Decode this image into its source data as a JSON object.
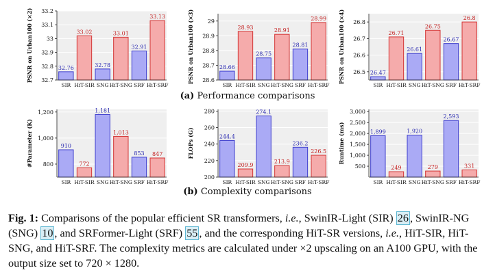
{
  "chart_data": [
    {
      "type": "bar",
      "ylabel": "PSNR on Urban100 (×2)",
      "categories": [
        "SIR",
        "HiT-SIR",
        "SNG",
        "HiT-SNG",
        "SRF",
        "HiT-SRF"
      ],
      "values": [
        32.76,
        33.02,
        32.78,
        33.01,
        32.91,
        33.13
      ],
      "labels": [
        "32.76",
        "33.02",
        "32.78",
        "33.01",
        "32.91",
        "33.13"
      ],
      "ylim": [
        32.7,
        33.2
      ],
      "yticks": [
        32.7,
        32.8,
        32.9,
        33.0,
        33.1,
        33.2
      ],
      "yticklabels": [
        "32.7",
        "32.8",
        "32.9",
        "33",
        "33.1",
        "33.2"
      ],
      "grid": true
    },
    {
      "type": "bar",
      "ylabel": "PSNR on Urban100 (×3)",
      "categories": [
        "SIR",
        "HiT-SIR",
        "SNG",
        "HiT-SNG",
        "SRF",
        "HiT-SRF"
      ],
      "values": [
        28.66,
        28.93,
        28.75,
        28.91,
        28.81,
        28.99
      ],
      "labels": [
        "28.66",
        "28.93",
        "28.75",
        "28.91",
        "28.81",
        "28.99"
      ],
      "ylim": [
        28.6,
        29.05
      ],
      "yticks": [
        28.6,
        28.7,
        28.8,
        28.9,
        29.0
      ],
      "yticklabels": [
        "28.6",
        "28.7",
        "28.8",
        "28.9",
        "29"
      ],
      "grid": true
    },
    {
      "type": "bar",
      "ylabel": "PSNR on Urban100 (×4)",
      "categories": [
        "SIR",
        "HiT-SIR",
        "SNG",
        "HiT-SNG",
        "SRF",
        "HiT-SRF"
      ],
      "values": [
        26.47,
        26.71,
        26.61,
        26.75,
        26.67,
        26.8
      ],
      "labels": [
        "26.47",
        "26.71",
        "26.61",
        "26.75",
        "26.67",
        "26.8"
      ],
      "ylim": [
        26.45,
        26.85
      ],
      "yticks": [
        26.5,
        26.6,
        26.7,
        26.8
      ],
      "yticklabels": [
        "26.5",
        "26.6",
        "26.7",
        "26.8"
      ],
      "grid": true
    },
    {
      "type": "bar",
      "ylabel": "#Parameter (K)",
      "categories": [
        "SIR",
        "HiT-SIR",
        "SNG",
        "HiT-SNG",
        "SRF",
        "HiT-SRF"
      ],
      "values": [
        910,
        772,
        1181,
        1013,
        853,
        847
      ],
      "labels": [
        "910",
        "772",
        "1,181",
        "1,013",
        "853",
        "847"
      ],
      "ylim": [
        700,
        1220
      ],
      "yticks": [
        800,
        1000,
        1200
      ],
      "yticklabels": [
        "800",
        "1,000",
        "1,200"
      ],
      "grid": true
    },
    {
      "type": "bar",
      "ylabel": "FLOPs (G)",
      "categories": [
        "SIR",
        "HiT-SIR",
        "SNG",
        "HiT-SNG",
        "SRF",
        "HiT-SRF"
      ],
      "values": [
        244.4,
        209.9,
        274.1,
        213.9,
        236.2,
        226.5
      ],
      "labels": [
        "244.4",
        "209.9",
        "274.1",
        "213.9",
        "236.2",
        "226.5"
      ],
      "ylim": [
        200,
        282
      ],
      "yticks": [
        200,
        220,
        240,
        260,
        280
      ],
      "yticklabels": [
        "200",
        "220",
        "240",
        "260",
        "280"
      ],
      "grid": true
    },
    {
      "type": "bar",
      "ylabel": "Runtime (ms)",
      "categories": [
        "SIR",
        "HiT-SIR",
        "SNG",
        "HiT-SNG",
        "SRF",
        "HiT-SRF"
      ],
      "values": [
        1899,
        249,
        1920,
        279,
        2593,
        331
      ],
      "labels": [
        "1,899",
        "249",
        "1,920",
        "279",
        "2,593",
        "331"
      ],
      "ylim": [
        0,
        3100
      ],
      "yticks": [
        500,
        1000,
        1500,
        2000,
        2500,
        3000
      ],
      "yticklabels": [
        "500",
        "1,000",
        "1,500",
        "2,000",
        "2,500",
        "3,000"
      ],
      "grid": true
    }
  ],
  "colors": {
    "baseline_fill": "#aaaaf5",
    "baseline_edge": "#3c3ccc",
    "baseline_text": "#2a2ab0",
    "hit_fill": "#f5abab",
    "hit_edge": "#d33434",
    "hit_text": "#c42020",
    "plot_bg": "#efefef",
    "grid": "#ffffff"
  },
  "subcaptions": {
    "a_label": "(a)",
    "a_text": "Performance comparisons",
    "b_label": "(b)",
    "b_text": "Complexity comparisons"
  },
  "caption": {
    "fig_label": "Fig. 1:",
    "t1": "Comparisons of the popular efficient SR transformers,",
    "ie1": "i.e.",
    "t2": ", SwinIR-Light (SIR)",
    "ref1": "26",
    "t3": ", SwinIR-NG (SNG)",
    "ref2": "10",
    "t4": ", and SRFormer-Light (SRF)",
    "ref3": "55",
    "t5": ", and the corresponding HiT-SR versions,",
    "ie2": "i.e.",
    "t6": ", HiT-SIR, HiT-SNG, and HiT-SRF. The complexity metrics are calculated under ×2 upscaling on an A100 GPU, with the output size set to 720 × 1280."
  }
}
